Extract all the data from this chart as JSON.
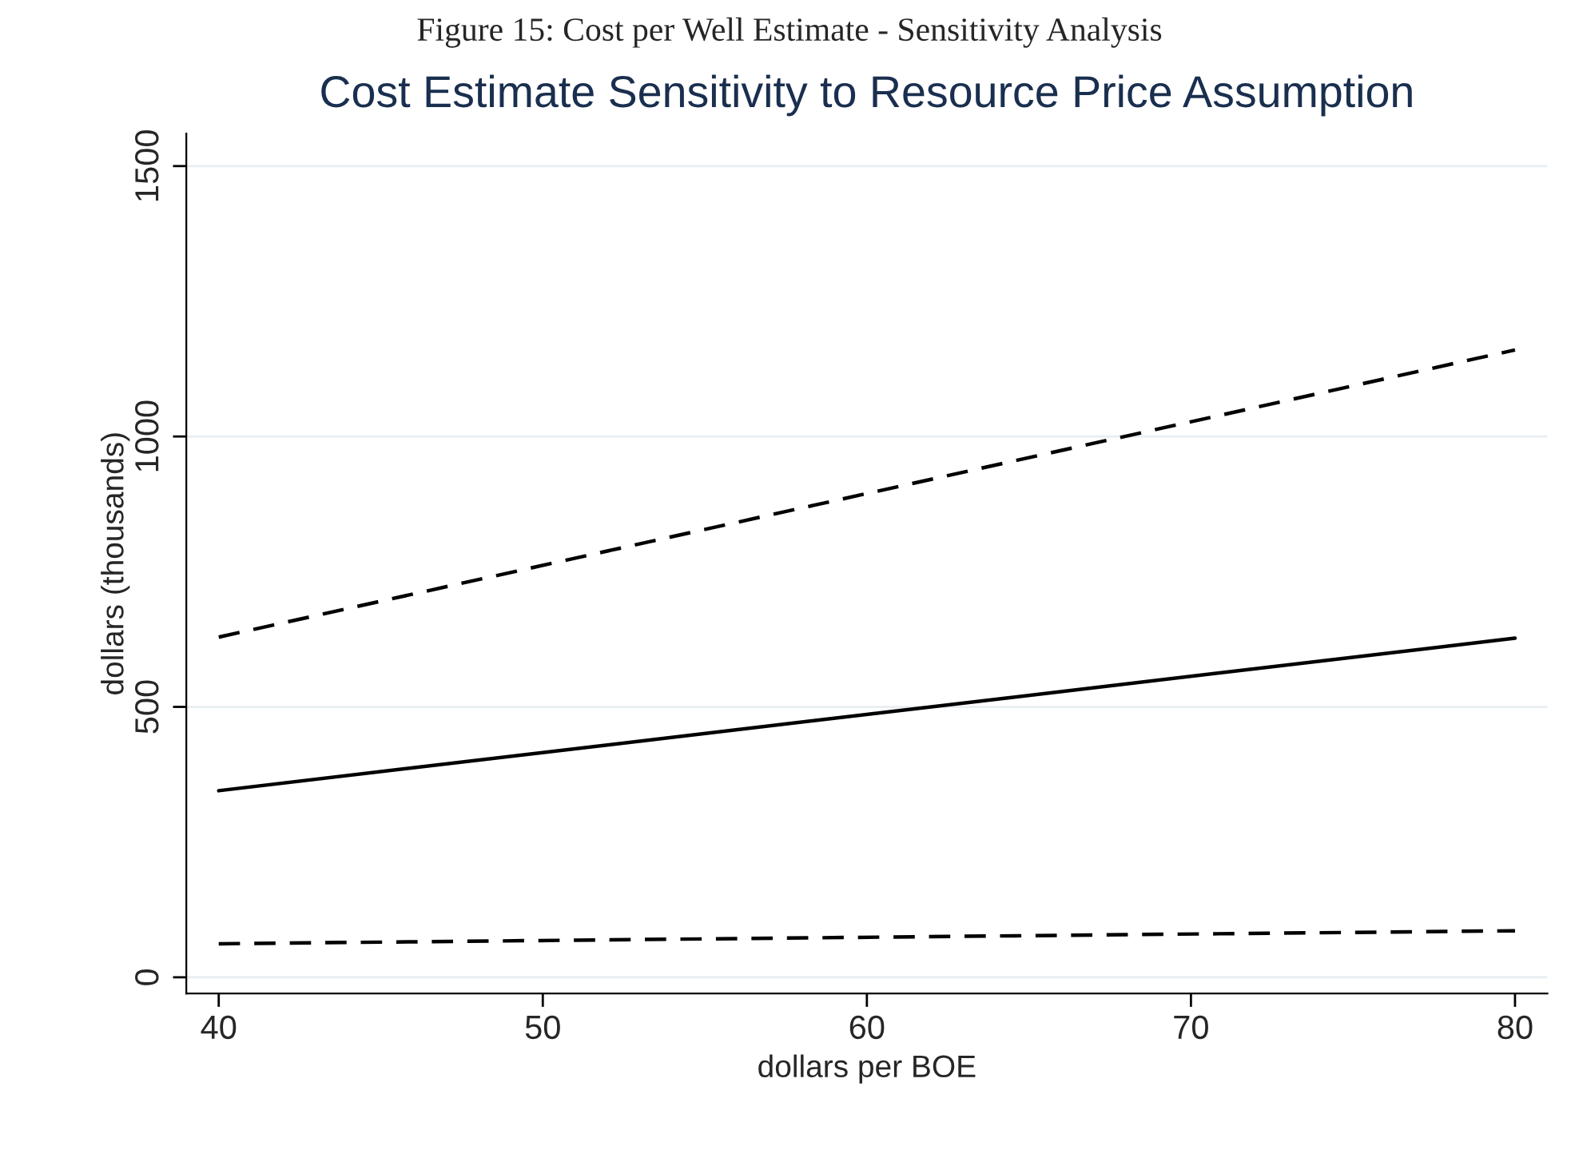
{
  "chart_data": {
    "type": "line",
    "title": "Cost Estimate Sensitivity to Resource Price Assumption",
    "annotations": [
      "Figure 15: Cost per Well Estimate - Sensitivity Analysis"
    ],
    "xlabel": "dollars per BOE",
    "ylabel": "dollars (thousands)",
    "x": [
      40,
      80
    ],
    "series": [
      {
        "color": "#000000",
        "line_style": "dashed",
        "values": [
          629,
          1160
        ]
      },
      {
        "color": "#000000",
        "line_style": "solid",
        "values": [
          345,
          627
        ]
      },
      {
        "color": "#000000",
        "line_style": "dashed",
        "values": [
          62,
          86
        ]
      }
    ],
    "xlim": [
      39,
      81
    ],
    "xticks": [
      40,
      50,
      60,
      70,
      80
    ],
    "ylim": [
      -30,
      1560
    ],
    "yticks": [
      0,
      500,
      1000,
      1500
    ],
    "grid": "y",
    "legend": false
  }
}
